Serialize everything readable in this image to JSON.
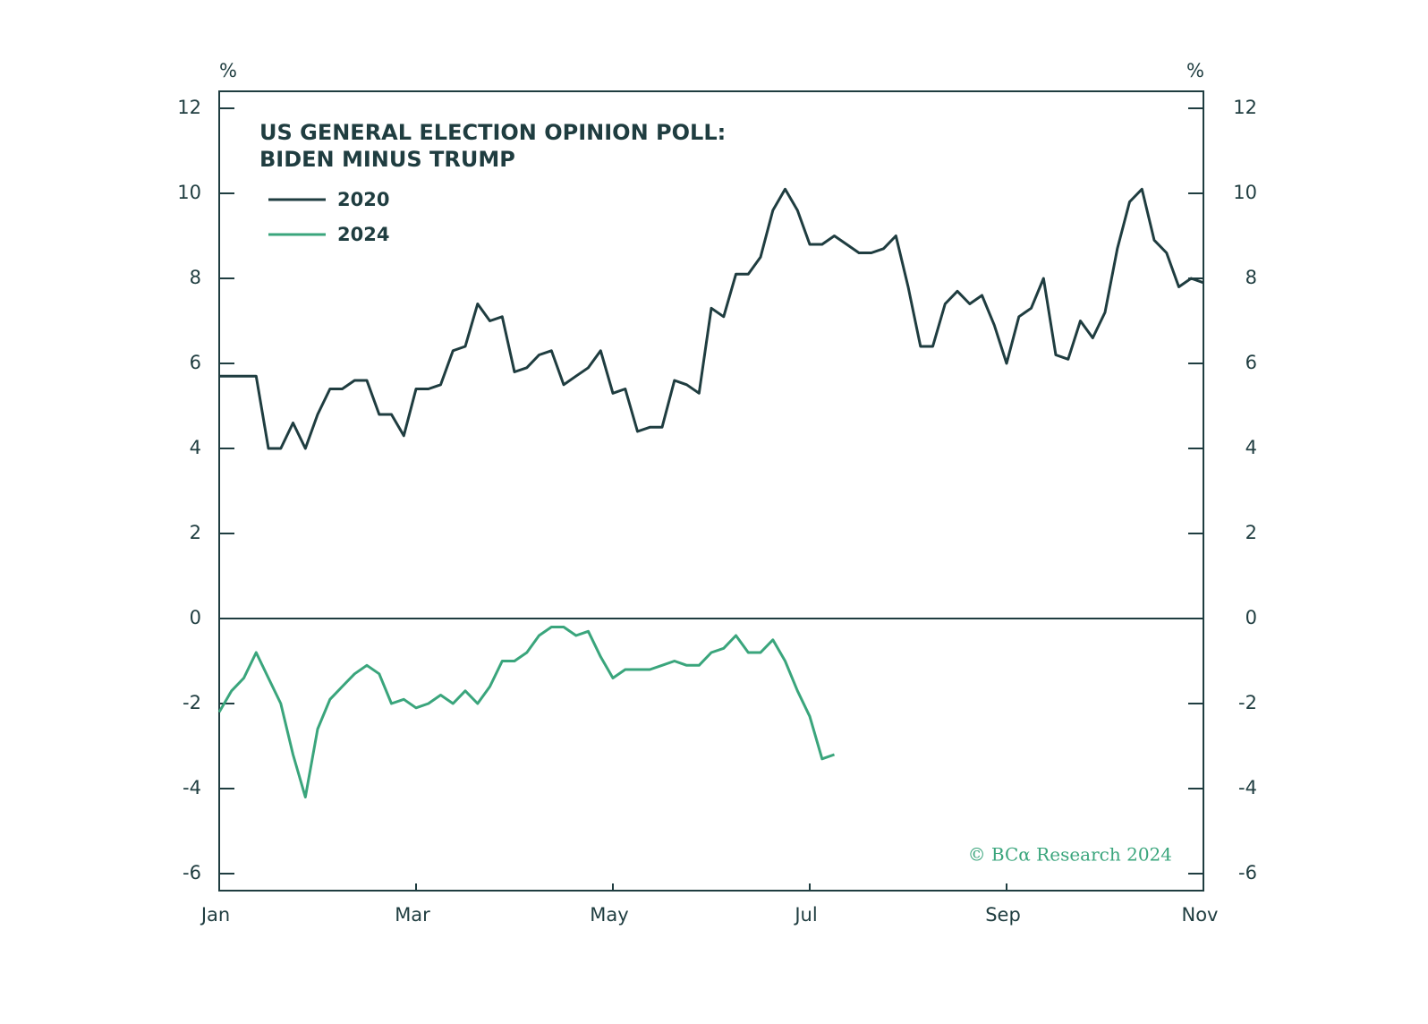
{
  "chart_data": {
    "type": "line",
    "title": [
      "US GENERAL ELECTION OPINION POLL:",
      "BIDEN MINUS TRUMP"
    ],
    "ylabel": "%",
    "y2label": "%",
    "source": "© BCα Research 2024",
    "categories": [
      "Jan",
      null,
      null,
      null,
      null,
      null,
      null,
      null,
      null,
      null,
      null,
      null,
      null,
      null,
      null,
      null,
      "Mar",
      null,
      null,
      null,
      null,
      null,
      null,
      null,
      null,
      null,
      null,
      null,
      null,
      null,
      null,
      null,
      "May",
      null,
      null,
      null,
      null,
      null,
      null,
      null,
      null,
      null,
      null,
      null,
      null,
      null,
      null,
      null,
      "Jul",
      null,
      null,
      null,
      null,
      null,
      null,
      null,
      null,
      null,
      null,
      null,
      null,
      null,
      null,
      null,
      "Sep",
      null,
      null,
      null,
      null,
      null,
      null,
      null,
      null,
      null,
      null,
      null,
      null,
      null,
      null,
      null,
      "Nov"
    ],
    "series": [
      {
        "name": "2020",
        "color": "#1f3d40",
        "values": [
          5.7,
          5.7,
          5.7,
          5.7,
          4.0,
          4.0,
          4.6,
          4.0,
          4.8,
          5.4,
          5.4,
          5.6,
          5.6,
          4.8,
          4.8,
          4.3,
          5.4,
          5.4,
          5.5,
          6.3,
          6.4,
          7.4,
          7.0,
          7.1,
          5.8,
          5.9,
          6.2,
          6.3,
          5.5,
          5.7,
          5.9,
          6.3,
          5.3,
          5.4,
          4.4,
          4.5,
          4.5,
          5.6,
          5.5,
          5.3,
          7.3,
          7.1,
          8.1,
          8.1,
          8.5,
          9.6,
          10.1,
          9.6,
          8.8,
          8.8,
          9.0,
          8.8,
          8.6,
          8.6,
          8.7,
          9.0,
          7.8,
          6.4,
          6.4,
          7.4,
          7.7,
          7.4,
          7.6,
          6.9,
          6.0,
          7.1,
          7.3,
          8.0,
          6.2,
          6.1,
          7.0,
          6.6,
          7.2,
          8.7,
          9.8,
          10.1,
          8.9,
          8.6,
          7.8,
          8.0,
          7.9
        ]
      },
      {
        "name": "2024",
        "color": "#3aa57c",
        "values": [
          -2.2,
          -1.7,
          -1.4,
          -0.8,
          -1.4,
          -2.0,
          -3.2,
          -4.2,
          -2.6,
          -1.9,
          -1.6,
          -1.3,
          -1.1,
          -1.3,
          -2.0,
          -1.9,
          -2.1,
          -2.0,
          -1.8,
          -2.0,
          -1.7,
          -2.0,
          -1.6,
          -1.0,
          -1.0,
          -0.8,
          -0.4,
          -0.2,
          -0.2,
          -0.4,
          -0.3,
          -0.9,
          -1.4,
          -1.2,
          -1.2,
          -1.2,
          -1.1,
          -1.0,
          -1.1,
          -1.1,
          -0.8,
          -0.7,
          -0.4,
          -0.8,
          -0.8,
          -0.5,
          -1.0,
          -1.7,
          -2.3,
          -3.3,
          -3.2,
          null,
          null,
          null,
          null,
          null,
          null,
          null,
          null,
          null,
          null,
          null,
          null,
          null,
          null,
          null,
          null,
          null,
          null,
          null,
          null,
          null,
          null,
          null,
          null,
          null,
          null,
          null,
          null,
          null,
          null
        ]
      }
    ],
    "ylim": [
      -6.4,
      12.4
    ],
    "yticks": [
      -6,
      -4,
      -2,
      0,
      2,
      4,
      6,
      8,
      10,
      12
    ],
    "y2lim": [
      -6.4,
      12.4
    ],
    "y2ticks": [
      -6,
      -4,
      -2,
      0,
      2,
      4,
      6,
      8,
      10,
      12
    ],
    "frame_color": "#1f3d40",
    "legend": "upper left"
  }
}
